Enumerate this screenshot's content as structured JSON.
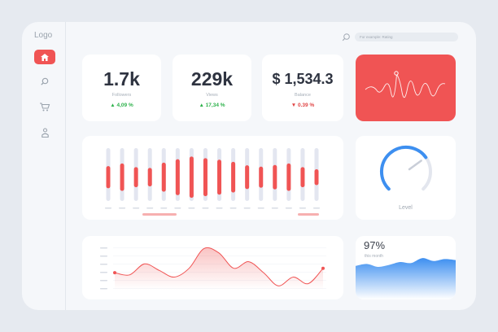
{
  "sidebar": {
    "logo": "Logo",
    "items": [
      {
        "icon": "home-icon",
        "active": true
      },
      {
        "icon": "search-icon",
        "active": false
      },
      {
        "icon": "cart-icon",
        "active": false
      },
      {
        "icon": "user-icon",
        "active": false
      }
    ]
  },
  "header": {
    "search_placeholder": "For example: Rating"
  },
  "stats": [
    {
      "value": "1.7k",
      "label": "Followers",
      "delta": "4,09 %",
      "trend": "up"
    },
    {
      "value": "229k",
      "label": "Views",
      "delta": "17,34 %",
      "trend": "up"
    },
    {
      "value": "$ 1,534.3",
      "label": "Balance",
      "delta": "0.39 %",
      "trend": "down"
    }
  ],
  "gauge": {
    "label": "Level",
    "level": 0.7
  },
  "area_card": {
    "percent": "97%",
    "subtitle": "this month"
  },
  "colors": {
    "accent": "#f05454",
    "up": "#2eb24c",
    "down": "#e04545",
    "blue": "#3d8ff0",
    "bar_bg": "#e3e6f0"
  },
  "chart_data": [
    {
      "type": "bar",
      "title": "",
      "values": [
        0.42,
        0.52,
        0.38,
        0.35,
        0.55,
        0.68,
        0.78,
        0.72,
        0.66,
        0.58,
        0.45,
        0.4,
        0.46,
        0.52,
        0.38,
        0.3
      ]
    },
    {
      "type": "line",
      "title": "",
      "y": [
        0.35,
        0.3,
        0.55,
        0.4,
        0.25,
        0.45,
        0.9,
        0.8,
        0.45,
        0.6,
        0.35,
        0.05,
        0.25,
        0.1,
        0.45
      ]
    },
    {
      "type": "area",
      "title": "",
      "y": [
        0.3,
        0.4,
        0.25,
        0.35,
        0.5,
        0.45,
        0.7,
        0.55,
        0.65,
        0.6
      ]
    }
  ]
}
